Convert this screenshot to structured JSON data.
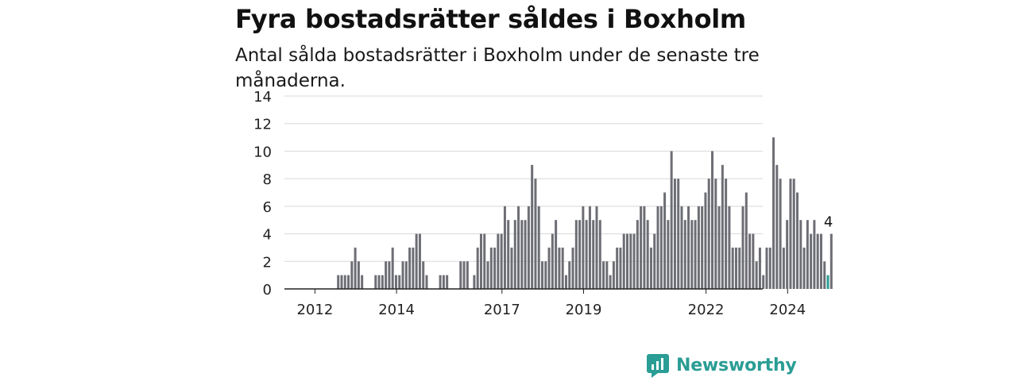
{
  "title": "Fyra bostadsrätter såldes i Boxholm",
  "subtitle": "Antal sålda bostadsrätter i Boxholm under de senaste tre månaderna.",
  "logo": {
    "text": "Newsworthy",
    "icon": "newsworthy-chart-icon",
    "color": "#2a9d94"
  },
  "colors": {
    "bar": "#6d6e75",
    "highlight": "#2a9d94",
    "grid": "#d8d8d8",
    "axis": "#222222"
  },
  "chart_data": {
    "type": "bar",
    "title": "Fyra bostadsrätter såldes i Boxholm",
    "subtitle": "Antal sålda bostadsrätter i Boxholm under de senaste tre månaderna.",
    "xlabel": "",
    "ylabel": "",
    "x_start": "2011-10",
    "interval": "month",
    "ylim": [
      0,
      14
    ],
    "yticks": [
      0,
      2,
      4,
      6,
      8,
      10,
      12,
      14
    ],
    "xticks": [
      {
        "label": "2012",
        "month": "2012-06"
      },
      {
        "label": "2014",
        "month": "2014-06"
      },
      {
        "label": "2017",
        "month": "2017-01"
      },
      {
        "label": "2019",
        "month": "2019-01"
      },
      {
        "label": "2022",
        "month": "2022-01"
      },
      {
        "label": "2024",
        "month": "2024-01"
      }
    ],
    "grid": true,
    "legend": "none",
    "highlight": {
      "month": "2025-01",
      "value": 4,
      "label": "4"
    },
    "values": [
      0,
      0,
      0,
      0,
      0,
      0,
      0,
      0,
      0,
      0,
      0,
      0,
      0,
      0,
      0,
      1,
      1,
      1,
      1,
      2,
      3,
      2,
      1,
      0,
      0,
      0,
      1,
      1,
      1,
      2,
      2,
      3,
      1,
      1,
      2,
      2,
      3,
      3,
      4,
      4,
      2,
      1,
      0,
      0,
      0,
      1,
      1,
      1,
      0,
      0,
      0,
      2,
      2,
      2,
      0,
      1,
      3,
      4,
      4,
      2,
      3,
      3,
      4,
      4,
      6,
      5,
      3,
      5,
      6,
      5,
      5,
      6,
      9,
      8,
      6,
      2,
      2,
      3,
      4,
      5,
      3,
      3,
      1,
      2,
      3,
      5,
      5,
      6,
      5,
      6,
      5,
      6,
      5,
      2,
      2,
      1,
      2,
      3,
      3,
      4,
      4,
      4,
      4,
      5,
      6,
      6,
      5,
      3,
      4,
      6,
      6,
      7,
      5,
      10,
      8,
      8,
      6,
      5,
      6,
      5,
      5,
      6,
      6,
      7,
      8,
      10,
      8,
      6,
      9,
      8,
      6,
      3,
      3,
      3,
      6,
      7,
      4,
      4,
      2,
      3,
      1,
      3,
      3,
      11,
      9,
      8,
      3,
      5,
      8,
      8,
      7,
      5,
      3,
      5,
      4,
      5,
      4,
      4,
      2,
      1,
      4
    ]
  }
}
